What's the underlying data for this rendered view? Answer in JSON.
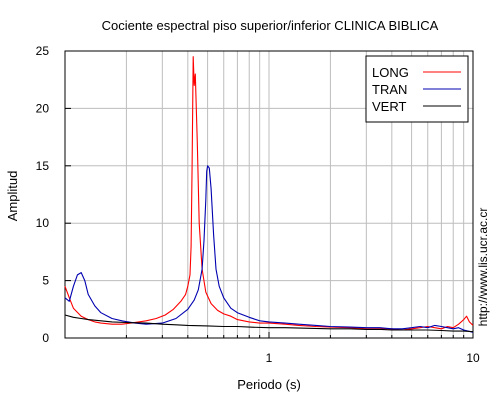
{
  "chart_data": {
    "type": "line",
    "title": "Cociente espectral piso superior/inferior  CLINICA BIBLICA",
    "xlabel": "Periodo (s)",
    "ylabel": "Amplitud",
    "x_scale": "log",
    "xlim": [
      0.1,
      10
    ],
    "ylim": [
      0,
      25
    ],
    "grid": true,
    "legend_position": "top-right",
    "x_ticks": [
      {
        "value": 1,
        "label": "1"
      },
      {
        "value": 10,
        "label": "10"
      }
    ],
    "y_ticks": [
      {
        "value": 0,
        "label": "0"
      },
      {
        "value": 5,
        "label": "5"
      },
      {
        "value": 10,
        "label": "10"
      },
      {
        "value": 15,
        "label": "15"
      },
      {
        "value": 20,
        "label": "20"
      },
      {
        "value": 25,
        "label": "25"
      }
    ],
    "annotation": "http://www.lis.ucr.ac.cr",
    "series": [
      {
        "name": "LONG",
        "color": "#ff0000",
        "points": [
          [
            0.1,
            4.5
          ],
          [
            0.105,
            3.5
          ],
          [
            0.11,
            2.6
          ],
          [
            0.12,
            1.9
          ],
          [
            0.13,
            1.6
          ],
          [
            0.14,
            1.4
          ],
          [
            0.15,
            1.3
          ],
          [
            0.17,
            1.2
          ],
          [
            0.19,
            1.2
          ],
          [
            0.21,
            1.3
          ],
          [
            0.23,
            1.4
          ],
          [
            0.25,
            1.5
          ],
          [
            0.28,
            1.7
          ],
          [
            0.31,
            2.0
          ],
          [
            0.34,
            2.5
          ],
          [
            0.37,
            3.2
          ],
          [
            0.39,
            3.8
          ],
          [
            0.4,
            4.5
          ],
          [
            0.41,
            5.5
          ],
          [
            0.415,
            8
          ],
          [
            0.42,
            15
          ],
          [
            0.425,
            24.5
          ],
          [
            0.43,
            22
          ],
          [
            0.435,
            23
          ],
          [
            0.445,
            17
          ],
          [
            0.455,
            10
          ],
          [
            0.47,
            6
          ],
          [
            0.49,
            4
          ],
          [
            0.52,
            3
          ],
          [
            0.56,
            2.4
          ],
          [
            0.6,
            2.1
          ],
          [
            0.65,
            1.9
          ],
          [
            0.7,
            1.6
          ],
          [
            0.8,
            1.4
          ],
          [
            0.9,
            1.3
          ],
          [
            1.0,
            1.3
          ],
          [
            1.2,
            1.2
          ],
          [
            1.4,
            1.1
          ],
          [
            1.7,
            1.0
          ],
          [
            2.0,
            0.95
          ],
          [
            2.5,
            0.9
          ],
          [
            3.0,
            0.8
          ],
          [
            3.5,
            0.8
          ],
          [
            4.0,
            0.8
          ],
          [
            4.5,
            0.7
          ],
          [
            5.0,
            0.8
          ],
          [
            5.5,
            0.9
          ],
          [
            6.0,
            1.0
          ],
          [
            6.5,
            0.9
          ],
          [
            7.0,
            0.8
          ],
          [
            7.5,
            1.0
          ],
          [
            8.0,
            0.9
          ],
          [
            8.5,
            1.2
          ],
          [
            9.0,
            1.6
          ],
          [
            9.3,
            1.9
          ],
          [
            9.6,
            1.4
          ],
          [
            10.0,
            1.1
          ]
        ]
      },
      {
        "name": "TRAN",
        "color": "#0000b0",
        "points": [
          [
            0.1,
            3.5
          ],
          [
            0.105,
            3.2
          ],
          [
            0.11,
            4.5
          ],
          [
            0.115,
            5.5
          ],
          [
            0.12,
            5.7
          ],
          [
            0.125,
            5.0
          ],
          [
            0.13,
            3.8
          ],
          [
            0.14,
            2.8
          ],
          [
            0.15,
            2.2
          ],
          [
            0.17,
            1.7
          ],
          [
            0.19,
            1.5
          ],
          [
            0.22,
            1.3
          ],
          [
            0.25,
            1.2
          ],
          [
            0.3,
            1.3
          ],
          [
            0.35,
            1.7
          ],
          [
            0.4,
            2.5
          ],
          [
            0.43,
            3.3
          ],
          [
            0.45,
            4.2
          ],
          [
            0.47,
            6.0
          ],
          [
            0.48,
            8.5
          ],
          [
            0.49,
            12
          ],
          [
            0.495,
            14.5
          ],
          [
            0.5,
            15.0
          ],
          [
            0.51,
            14.8
          ],
          [
            0.52,
            13
          ],
          [
            0.535,
            9
          ],
          [
            0.55,
            6
          ],
          [
            0.57,
            4.5
          ],
          [
            0.6,
            3.5
          ],
          [
            0.65,
            2.6
          ],
          [
            0.7,
            2.2
          ],
          [
            0.8,
            1.8
          ],
          [
            0.9,
            1.5
          ],
          [
            1.0,
            1.4
          ],
          [
            1.2,
            1.3
          ],
          [
            1.4,
            1.2
          ],
          [
            1.7,
            1.1
          ],
          [
            2.0,
            1.0
          ],
          [
            2.5,
            0.95
          ],
          [
            3.0,
            0.9
          ],
          [
            3.5,
            0.9
          ],
          [
            4.0,
            0.8
          ],
          [
            4.5,
            0.8
          ],
          [
            5.0,
            0.9
          ],
          [
            5.5,
            1.0
          ],
          [
            6.0,
            0.9
          ],
          [
            6.5,
            1.1
          ],
          [
            7.0,
            1.0
          ],
          [
            7.5,
            0.9
          ],
          [
            8.0,
            0.8
          ],
          [
            8.5,
            0.9
          ],
          [
            9.0,
            0.7
          ],
          [
            9.5,
            0.6
          ],
          [
            10.0,
            0.5
          ]
        ]
      },
      {
        "name": "VERT",
        "color": "#000000",
        "points": [
          [
            0.1,
            2.0
          ],
          [
            0.11,
            1.8
          ],
          [
            0.12,
            1.7
          ],
          [
            0.13,
            1.6
          ],
          [
            0.15,
            1.5
          ],
          [
            0.17,
            1.4
          ],
          [
            0.2,
            1.35
          ],
          [
            0.25,
            1.3
          ],
          [
            0.3,
            1.2
          ],
          [
            0.35,
            1.15
          ],
          [
            0.4,
            1.1
          ],
          [
            0.5,
            1.05
          ],
          [
            0.6,
            1.0
          ],
          [
            0.7,
            1.0
          ],
          [
            0.8,
            0.95
          ],
          [
            1.0,
            0.9
          ],
          [
            1.2,
            0.9
          ],
          [
            1.5,
            0.85
          ],
          [
            2.0,
            0.8
          ],
          [
            2.5,
            0.8
          ],
          [
            3.0,
            0.75
          ],
          [
            3.5,
            0.75
          ],
          [
            4.0,
            0.7
          ],
          [
            5.0,
            0.7
          ],
          [
            6.0,
            0.7
          ],
          [
            7.0,
            0.65
          ],
          [
            8.0,
            0.6
          ],
          [
            9.0,
            0.6
          ],
          [
            10.0,
            0.55
          ]
        ]
      }
    ]
  }
}
